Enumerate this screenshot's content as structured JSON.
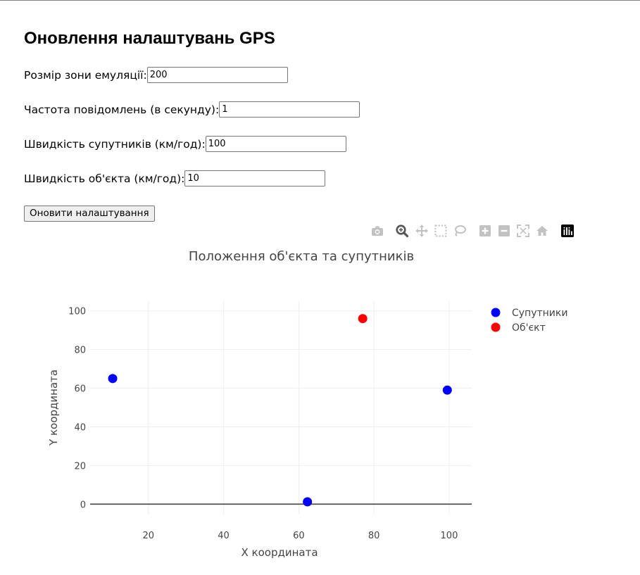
{
  "page": {
    "title": "Оновлення налаштувань GPS"
  },
  "form": {
    "fields": [
      {
        "label": "Розмір зони емуляції:",
        "value": "200"
      },
      {
        "label": "Частота повідомлень (в секунду):",
        "value": "1"
      },
      {
        "label": "Швидкість супутників (км/год):",
        "value": "100"
      },
      {
        "label": "Швидкість об'єкта (км/год):",
        "value": "10"
      }
    ],
    "submit_label": "Оновити налаштування"
  },
  "modebar": {
    "icons": [
      "camera-icon",
      "zoom-icon",
      "pan-icon",
      "box-select-icon",
      "lasso-select-icon",
      "zoom-in-icon",
      "zoom-out-icon",
      "autoscale-icon",
      "reset-axes-icon",
      "plotly-logo-icon"
    ]
  },
  "chart_data": {
    "type": "scatter",
    "title": "Положення об'єкта та супутників",
    "xlabel": "X координата",
    "ylabel": "Y координата",
    "xlim": [
      4.5,
      106
    ],
    "ylim": [
      -5,
      105
    ],
    "xticks": [
      20,
      40,
      60,
      80,
      100
    ],
    "yticks": [
      0,
      20,
      40,
      60,
      80,
      100
    ],
    "grid": true,
    "legend_position": "top-right",
    "series": [
      {
        "name": "Супутники",
        "color": "#0000ff",
        "x": [
          10.5,
          62.3,
          99.5
        ],
        "y": [
          65,
          1.2,
          59
        ]
      },
      {
        "name": "Об'єкт",
        "color": "#ff0000",
        "x": [
          77
        ],
        "y": [
          96
        ]
      }
    ]
  }
}
